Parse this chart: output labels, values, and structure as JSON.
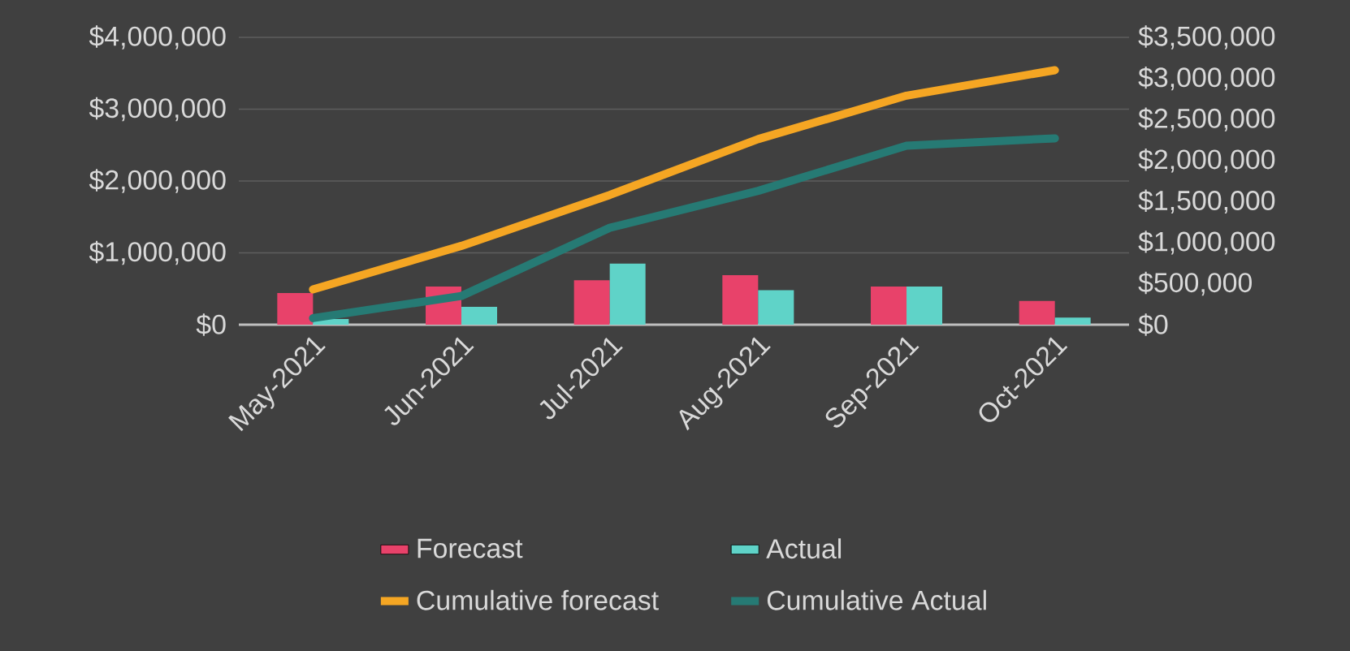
{
  "chart_data": {
    "type": "bar",
    "categories": [
      "May-2021",
      "Jun-2021",
      "Jul-2021",
      "Aug-2021",
      "Sep-2021",
      "Oct-2021"
    ],
    "series": [
      {
        "name": "Forecast",
        "color": "#e8426a",
        "values": [
          440000,
          530000,
          620000,
          690000,
          530000,
          330000
        ]
      },
      {
        "name": "Actual",
        "color": "#5fd3c8",
        "values": [
          80000,
          250000,
          850000,
          480000,
          530000,
          100000
        ]
      },
      {
        "name": "Cumulative forecast",
        "type": "line",
        "axis": "y2",
        "color": "#f5a623",
        "values": [
          430000,
          960000,
          1580000,
          2260000,
          2790000,
          3100000
        ]
      },
      {
        "name": "Cumulative Actual",
        "type": "line",
        "axis": "y2",
        "color": "#267a74",
        "values": [
          80000,
          350000,
          1180000,
          1630000,
          2180000,
          2270000
        ]
      }
    ],
    "ylim": [
      0,
      4000000
    ],
    "yticks": [
      {
        "value": 0,
        "label": "$0"
      },
      {
        "value": 1000000,
        "label": "$1,000,000"
      },
      {
        "value": 2000000,
        "label": "$2,000,000"
      },
      {
        "value": 3000000,
        "label": "$3,000,000"
      },
      {
        "value": 4000000,
        "label": "$4,000,000"
      }
    ],
    "y2lim": [
      0,
      3500000
    ],
    "y2ticks": [
      {
        "value": 0,
        "label": "$0"
      },
      {
        "value": 500000,
        "label": "$500,000"
      },
      {
        "value": 1000000,
        "label": "$1,000,000"
      },
      {
        "value": 1500000,
        "label": "$1,500,000"
      },
      {
        "value": 2000000,
        "label": "$2,000,000"
      },
      {
        "value": 2500000,
        "label": "$2,500,000"
      },
      {
        "value": 3000000,
        "label": "$3,000,000"
      },
      {
        "value": 3500000,
        "label": "$3,500,000"
      }
    ],
    "grid": "y",
    "legend": "bottom"
  }
}
